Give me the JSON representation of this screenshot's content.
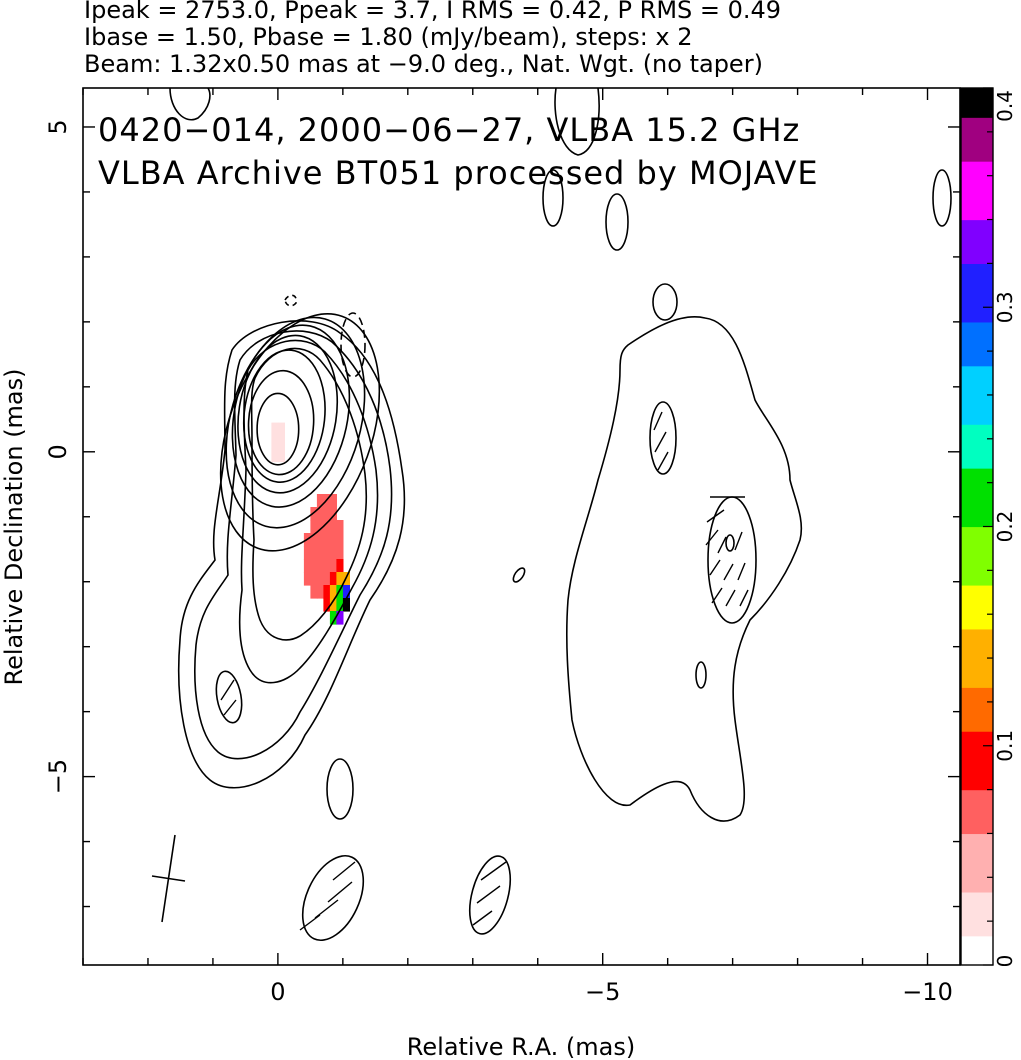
{
  "header": {
    "line1": "Ipeak = 2753.0, Ppeak = 3.7, I RMS = 0.42, P RMS = 0.49",
    "line2": "Ibase = 1.50, Pbase = 1.80 (mJy/beam), steps: x 2",
    "line3": "Beam: 1.32x0.50 mas at −9.0 deg., Nat. Wgt. (no taper)"
  },
  "annotation": {
    "line1": "0420−014, 2000−06−27, VLBA 15.2 GHz",
    "line2": "VLBA Archive BT051 processed by MOJAVE"
  },
  "chart_data": {
    "type": "contour",
    "title": "0420−014, 2000−06−27, VLBA 15.2 GHz",
    "subtitle": "VLBA Archive BT051 processed by MOJAVE",
    "xlabel": "Relative R.A. (mas)",
    "ylabel": "Relative Declination (mas)",
    "xlim": [
      3.0,
      -10.5
    ],
    "ylim": [
      -7.9,
      5.6
    ],
    "xticks": [
      0,
      -5,
      -10
    ],
    "xtick_labels": [
      "0",
      "−5",
      "−10"
    ],
    "yticks": [
      5,
      0,
      -5
    ],
    "ytick_labels": [
      "5",
      "0",
      "−5"
    ],
    "stats": {
      "ipeak_mjy_beam": 2753.0,
      "ppeak_mjy_beam": 3.7,
      "i_rms": 0.42,
      "p_rms": 0.49,
      "ibase": 1.5,
      "pbase": 1.8,
      "step_factor": 2
    },
    "beam": {
      "major_mas": 1.32,
      "minor_mas": 0.5,
      "pa_deg": -9.0,
      "center": [
        1.8,
        -6.6
      ]
    },
    "colorbar": {
      "min": 0,
      "max": 0.4,
      "ticks": [
        0,
        0.1,
        0.2,
        0.3,
        0.4
      ],
      "tick_labels": [
        "0",
        "0.1",
        "0.2",
        "0.3",
        "0.4"
      ],
      "colors": [
        "#ffffff",
        "#ffe0e0",
        "#ffb0b0",
        "#ff6060",
        "#ff0000",
        "#ff6a00",
        "#ffb000",
        "#ffff00",
        "#80ff00",
        "#00e000",
        "#00ffc0",
        "#00d0ff",
        "#0070ff",
        "#2020ff",
        "#8000ff",
        "#ff00ff",
        "#a00080",
        "#000000"
      ]
    },
    "core_contours": [
      {
        "dx": 0.0,
        "dy": 0.35,
        "rx": 0.32,
        "ry": 0.55,
        "rot": 0
      },
      {
        "dx": -0.05,
        "dy": 0.45,
        "rx": 0.5,
        "ry": 0.8,
        "rot": 3
      },
      {
        "dx": -0.1,
        "dy": 0.55,
        "rx": 0.62,
        "ry": 1.02,
        "rot": 6
      },
      {
        "dx": -0.15,
        "dy": 0.58,
        "rx": 0.75,
        "ry": 1.22,
        "rot": 9
      },
      {
        "dx": -0.2,
        "dy": 0.55,
        "rx": 0.87,
        "ry": 1.42,
        "rot": 12
      },
      {
        "dx": -0.27,
        "dy": 0.45,
        "rx": 1.0,
        "ry": 1.66,
        "rot": 16
      },
      {
        "dx": -0.34,
        "dy": 0.3,
        "rx": 1.1,
        "ry": 1.9,
        "rot": 20
      }
    ],
    "polarization_pixels": [
      {
        "x": -0.65,
        "y": -0.75,
        "v": 0.07
      },
      {
        "x": -0.75,
        "y": -0.75,
        "v": 0.07
      },
      {
        "x": -0.85,
        "y": -0.75,
        "v": 0.07
      },
      {
        "x": -0.55,
        "y": -0.95,
        "v": 0.07
      },
      {
        "x": -0.65,
        "y": -0.95,
        "v": 0.07
      },
      {
        "x": -0.75,
        "y": -0.95,
        "v": 0.07
      },
      {
        "x": -0.85,
        "y": -0.95,
        "v": 0.07
      },
      {
        "x": -0.55,
        "y": -1.15,
        "v": 0.07
      },
      {
        "x": -0.65,
        "y": -1.15,
        "v": 0.07
      },
      {
        "x": -0.75,
        "y": -1.15,
        "v": 0.07
      },
      {
        "x": -0.85,
        "y": -1.15,
        "v": 0.07
      },
      {
        "x": -0.95,
        "y": -1.15,
        "v": 0.07
      },
      {
        "x": -0.45,
        "y": -1.35,
        "v": 0.07
      },
      {
        "x": -0.55,
        "y": -1.35,
        "v": 0.07
      },
      {
        "x": -0.65,
        "y": -1.35,
        "v": 0.07
      },
      {
        "x": -0.75,
        "y": -1.35,
        "v": 0.07
      },
      {
        "x": -0.85,
        "y": -1.35,
        "v": 0.07
      },
      {
        "x": -0.95,
        "y": -1.35,
        "v": 0.07
      },
      {
        "x": -0.45,
        "y": -1.55,
        "v": 0.07
      },
      {
        "x": -0.55,
        "y": -1.55,
        "v": 0.07
      },
      {
        "x": -0.65,
        "y": -1.55,
        "v": 0.07
      },
      {
        "x": -0.75,
        "y": -1.55,
        "v": 0.07
      },
      {
        "x": -0.85,
        "y": -1.55,
        "v": 0.07
      },
      {
        "x": -0.95,
        "y": -1.55,
        "v": 0.07
      },
      {
        "x": -0.45,
        "y": -1.75,
        "v": 0.07
      },
      {
        "x": -0.55,
        "y": -1.75,
        "v": 0.07
      },
      {
        "x": -0.65,
        "y": -1.75,
        "v": 0.07
      },
      {
        "x": -0.75,
        "y": -1.75,
        "v": 0.07
      },
      {
        "x": -0.85,
        "y": -1.75,
        "v": 0.07
      },
      {
        "x": -0.95,
        "y": -1.75,
        "v": 0.09
      },
      {
        "x": -0.45,
        "y": -1.95,
        "v": 0.07
      },
      {
        "x": -0.55,
        "y": -1.95,
        "v": 0.07
      },
      {
        "x": -0.65,
        "y": -1.95,
        "v": 0.07
      },
      {
        "x": -0.75,
        "y": -1.95,
        "v": 0.07
      },
      {
        "x": -0.85,
        "y": -1.95,
        "v": 0.1
      },
      {
        "x": -0.95,
        "y": -1.95,
        "v": 0.14
      },
      {
        "x": -1.05,
        "y": -1.95,
        "v": 0.14
      },
      {
        "x": -0.55,
        "y": -2.15,
        "v": 0.07
      },
      {
        "x": -0.65,
        "y": -2.15,
        "v": 0.07
      },
      {
        "x": -0.75,
        "y": -2.15,
        "v": 0.1
      },
      {
        "x": -0.85,
        "y": -2.15,
        "v": 0.14
      },
      {
        "x": -0.95,
        "y": -2.15,
        "v": 0.2
      },
      {
        "x": -1.05,
        "y": -2.15,
        "v": 0.3
      },
      {
        "x": -0.75,
        "y": -2.35,
        "v": 0.1
      },
      {
        "x": -0.85,
        "y": -2.35,
        "v": 0.15
      },
      {
        "x": -0.95,
        "y": -2.35,
        "v": 0.22
      },
      {
        "x": -1.05,
        "y": -2.35,
        "v": 0.4
      },
      {
        "x": -0.85,
        "y": -2.55,
        "v": 0.2
      },
      {
        "x": -0.95,
        "y": -2.55,
        "v": 0.33
      },
      {
        "x": -0.05,
        "y": 0.35,
        "v": 0.02
      },
      {
        "x": 0.05,
        "y": 0.35,
        "v": 0.02
      },
      {
        "x": -0.05,
        "y": 0.15,
        "v": 0.02
      },
      {
        "x": 0.05,
        "y": 0.15,
        "v": 0.02
      },
      {
        "x": -0.05,
        "y": -0.05,
        "v": 0.02
      },
      {
        "x": 0.05,
        "y": -0.05,
        "v": 0.02
      }
    ]
  }
}
